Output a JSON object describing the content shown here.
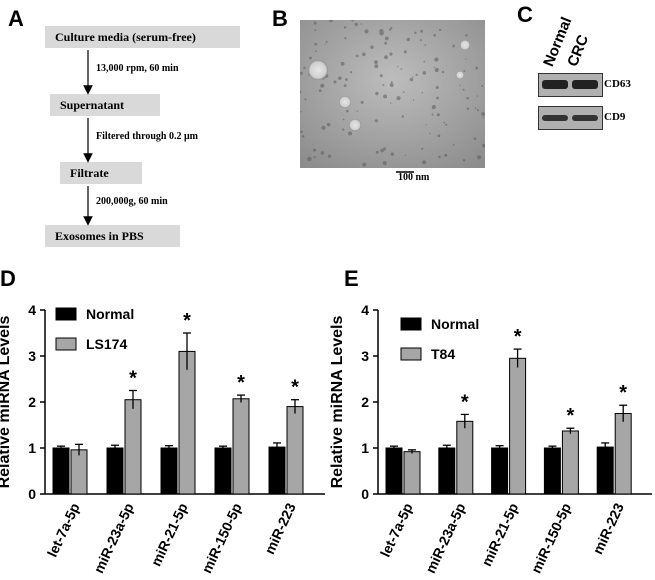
{
  "panels": {
    "a": "A",
    "b": "B",
    "c": "C",
    "d": "D",
    "e": "E"
  },
  "flow": {
    "steps": [
      "Culture media (serum-free)",
      "Supernatant",
      "Filtrate",
      "Exosomes  in PBS"
    ],
    "transitions": [
      "13,000 rpm, 60 min",
      "Filtered through 0.2 μm",
      "200,000g, 60 min"
    ]
  },
  "em": {
    "scale_label": "100 nm"
  },
  "western": {
    "columns": [
      "Normal",
      "CRC"
    ],
    "bands": [
      "CD63",
      "CD9"
    ]
  },
  "chart_data": [
    {
      "type": "bar",
      "panel": "D",
      "ylabel": "Relative miRNA Levels",
      "ylim": [
        0,
        4
      ],
      "yticks": [
        "0",
        "1",
        "2",
        "3",
        "4"
      ],
      "categories": [
        "let-7a-5p",
        "miR-23a-5p",
        "miR-21-5p",
        "miR-150-5p",
        "miR-223"
      ],
      "series": [
        {
          "name": "Normal",
          "color": "#000000",
          "values": [
            1.0,
            1.0,
            1.0,
            1.0,
            1.02
          ],
          "errors": [
            0.04,
            0.06,
            0.05,
            0.04,
            0.09
          ]
        },
        {
          "name": "LS174",
          "color": "#a6a6a6",
          "values": [
            0.96,
            2.05,
            3.1,
            2.07,
            1.9
          ],
          "errors": [
            0.12,
            0.2,
            0.4,
            0.08,
            0.15
          ]
        }
      ],
      "significance": [
        "",
        "*",
        "*",
        "*",
        "*"
      ],
      "legend_position": "top-left"
    },
    {
      "type": "bar",
      "panel": "E",
      "ylabel": "Relative miRNA Levels",
      "ylim": [
        0,
        4
      ],
      "yticks": [
        "0",
        "1",
        "2",
        "3",
        "4"
      ],
      "categories": [
        "let-7a-5p",
        "miR-23a-5p",
        "miR-21-5p",
        "miR-150-5p",
        "miR-223"
      ],
      "series": [
        {
          "name": "Normal",
          "color": "#000000",
          "values": [
            1.0,
            1.0,
            1.0,
            1.0,
            1.02
          ],
          "errors": [
            0.04,
            0.06,
            0.05,
            0.04,
            0.09
          ]
        },
        {
          "name": "T84",
          "color": "#a6a6a6",
          "values": [
            0.92,
            1.58,
            2.95,
            1.37,
            1.75
          ],
          "errors": [
            0.04,
            0.15,
            0.2,
            0.06,
            0.18
          ]
        }
      ],
      "significance": [
        "",
        "*",
        "*",
        "*",
        "*"
      ],
      "legend_position": "top-left"
    }
  ]
}
